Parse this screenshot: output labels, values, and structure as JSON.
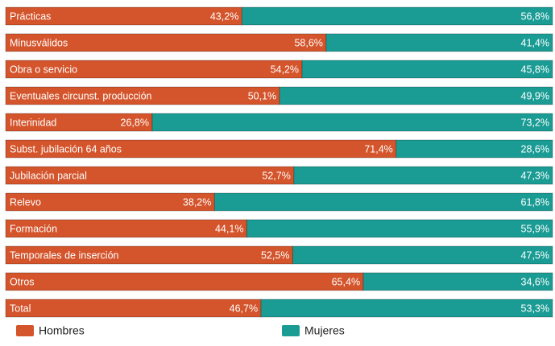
{
  "chart_data": {
    "type": "stacked-bar-horizontal",
    "categories": [
      "Prácticas",
      "Minusválidos",
      "Obra o servicio",
      "Eventuales circunst. producción",
      "Interinidad",
      "Subst. jubilación 64 años",
      "Jubilación parcial",
      "Relevo",
      "Formación",
      "Temporales de inserción",
      "Otros",
      "Total"
    ],
    "series": [
      {
        "name": "Hombres",
        "color": "#d4542b",
        "values": [
          43.2,
          58.6,
          54.2,
          50.1,
          26.8,
          71.4,
          52.7,
          38.2,
          44.1,
          52.5,
          65.4,
          46.7
        ],
        "value_labels": [
          "43,2%",
          "58,6%",
          "54,2%",
          "50,1%",
          "26,8%",
          "71,4%",
          "52,7%",
          "38,2%",
          "44,1%",
          "52,5%",
          "65,4%",
          "46,7%"
        ]
      },
      {
        "name": "Mujeres",
        "color": "#1a9c94",
        "values": [
          56.8,
          41.4,
          45.8,
          49.9,
          73.2,
          28.6,
          47.3,
          61.8,
          55.9,
          47.5,
          34.6,
          53.3
        ],
        "value_labels": [
          "56,8%",
          "41,4%",
          "45,8%",
          "49,9%",
          "73,2%",
          "28,6%",
          "47,3%",
          "61,8%",
          "55,9%",
          "47,5%",
          "34,6%",
          "53,3%"
        ]
      }
    ],
    "xlim": [
      0,
      100
    ]
  }
}
